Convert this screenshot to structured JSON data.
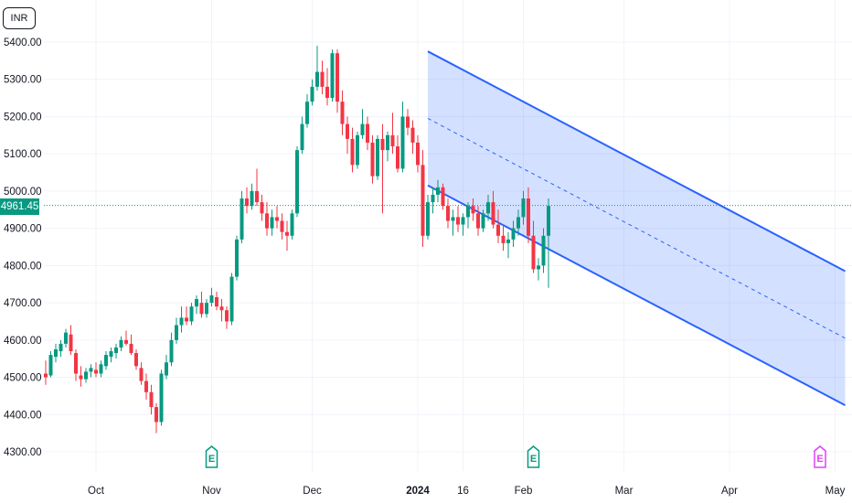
{
  "currency": "INR",
  "last_price_label": "4961.45",
  "colors": {
    "up": "#089981",
    "down": "#f23645",
    "channel": "#2962ff",
    "channel_fill": "#2962ff",
    "grid": "#f0f3fa",
    "earnings_past": "#089981",
    "earnings_future": "#e040fb"
  },
  "chart_data": {
    "type": "candlestick",
    "ylim": [
      4300,
      5400
    ],
    "y_ticks": [
      "5400.00",
      "5300.00",
      "5200.00",
      "5100.00",
      "5000.00",
      "4900.00",
      "4800.00",
      "4700.00",
      "4600.00",
      "4500.00",
      "4400.00",
      "4300.00"
    ],
    "x_ticks": [
      {
        "label": "Oct",
        "bar": 10,
        "bold": false
      },
      {
        "label": "Nov",
        "bar": 33,
        "bold": false
      },
      {
        "label": "Dec",
        "bar": 53,
        "bold": false
      },
      {
        "label": "2024",
        "bar": 74,
        "bold": true
      },
      {
        "label": "16",
        "bar": 83,
        "bold": false
      },
      {
        "label": "Feb",
        "bar": 95,
        "bold": false
      },
      {
        "label": "Mar",
        "bar": 115,
        "bold": false
      },
      {
        "label": "Apr",
        "bar": 136,
        "bold": false
      },
      {
        "label": "May",
        "bar": 157,
        "bold": false
      }
    ],
    "last_price": 4961.45,
    "earnings_markers": [
      {
        "label": "E",
        "bar": 33,
        "future": false
      },
      {
        "label": "E",
        "bar": 97,
        "future": false
      },
      {
        "label": "E",
        "bar": 154,
        "future": true
      }
    ],
    "channel": {
      "start_bar": 76,
      "end_bar": 159,
      "upper": [
        5375,
        4785
      ],
      "middle": [
        5195,
        4605
      ],
      "lower": [
        5015,
        4425
      ]
    },
    "candles": [
      [
        4510,
        4545,
        4480,
        4500
      ],
      [
        4505,
        4570,
        4500,
        4560
      ],
      [
        4555,
        4590,
        4540,
        4575
      ],
      [
        4570,
        4600,
        4555,
        4590
      ],
      [
        4590,
        4630,
        4580,
        4620
      ],
      [
        4615,
        4640,
        4560,
        4570
      ],
      [
        4565,
        4575,
        4490,
        4510
      ],
      [
        4505,
        4530,
        4475,
        4495
      ],
      [
        4495,
        4525,
        4485,
        4515
      ],
      [
        4515,
        4535,
        4500,
        4525
      ],
      [
        4520,
        4540,
        4500,
        4510
      ],
      [
        4510,
        4545,
        4500,
        4535
      ],
      [
        4530,
        4570,
        4520,
        4560
      ],
      [
        4555,
        4580,
        4540,
        4570
      ],
      [
        4565,
        4590,
        4550,
        4580
      ],
      [
        4580,
        4610,
        4570,
        4600
      ],
      [
        4600,
        4625,
        4585,
        4590
      ],
      [
        4590,
        4615,
        4560,
        4565
      ],
      [
        4565,
        4575,
        4520,
        4530
      ],
      [
        4525,
        4540,
        4480,
        4490
      ],
      [
        4490,
        4510,
        4440,
        4460
      ],
      [
        4460,
        4480,
        4400,
        4420
      ],
      [
        4420,
        4430,
        4350,
        4380
      ],
      [
        4380,
        4520,
        4370,
        4510
      ],
      [
        4505,
        4560,
        4495,
        4540
      ],
      [
        4540,
        4620,
        4530,
        4600
      ],
      [
        4600,
        4660,
        4590,
        4640
      ],
      [
        4640,
        4690,
        4620,
        4660
      ],
      [
        4660,
        4690,
        4640,
        4650
      ],
      [
        4650,
        4700,
        4640,
        4690
      ],
      [
        4690,
        4720,
        4670,
        4710
      ],
      [
        4700,
        4730,
        4660,
        4670
      ],
      [
        4670,
        4710,
        4660,
        4700
      ],
      [
        4700,
        4740,
        4690,
        4720
      ],
      [
        4715,
        4730,
        4680,
        4690
      ],
      [
        4690,
        4710,
        4650,
        4680
      ],
      [
        4680,
        4690,
        4630,
        4650
      ],
      [
        4650,
        4780,
        4640,
        4770
      ],
      [
        4770,
        4880,
        4760,
        4870
      ],
      [
        4870,
        5000,
        4860,
        4980
      ],
      [
        4980,
        5010,
        4940,
        4960
      ],
      [
        4960,
        5020,
        4950,
        5000
      ],
      [
        5000,
        5060,
        4960,
        4970
      ],
      [
        4970,
        4990,
        4920,
        4940
      ],
      [
        4940,
        4970,
        4880,
        4900
      ],
      [
        4900,
        4950,
        4880,
        4930
      ],
      [
        4930,
        4960,
        4900,
        4920
      ],
      [
        4920,
        4940,
        4870,
        4890
      ],
      [
        4890,
        4920,
        4840,
        4880
      ],
      [
        4880,
        4950,
        4870,
        4940
      ],
      [
        4940,
        5120,
        4930,
        5110
      ],
      [
        5110,
        5200,
        5100,
        5180
      ],
      [
        5180,
        5260,
        5170,
        5240
      ],
      [
        5240,
        5300,
        5230,
        5280
      ],
      [
        5280,
        5390,
        5270,
        5320
      ],
      [
        5320,
        5350,
        5260,
        5280
      ],
      [
        5280,
        5330,
        5230,
        5250
      ],
      [
        5250,
        5380,
        5240,
        5370
      ],
      [
        5370,
        5380,
        5210,
        5240
      ],
      [
        5240,
        5270,
        5150,
        5180
      ],
      [
        5180,
        5200,
        5100,
        5140
      ],
      [
        5140,
        5170,
        5050,
        5070
      ],
      [
        5070,
        5160,
        5060,
        5150
      ],
      [
        5150,
        5220,
        5140,
        5180
      ],
      [
        5180,
        5200,
        5110,
        5130
      ],
      [
        5130,
        5150,
        5020,
        5040
      ],
      [
        5040,
        5150,
        5030,
        5140
      ],
      [
        5140,
        5180,
        4940,
        5110
      ],
      [
        5110,
        5160,
        5080,
        5150
      ],
      [
        5150,
        5210,
        5100,
        5120
      ],
      [
        5120,
        5150,
        5050,
        5060
      ],
      [
        5060,
        5240,
        5050,
        5200
      ],
      [
        5200,
        5220,
        5150,
        5170
      ],
      [
        5170,
        5190,
        5100,
        5130
      ],
      [
        5130,
        5150,
        5050,
        5070
      ],
      [
        5070,
        5110,
        4850,
        4880
      ],
      [
        4880,
        4990,
        4870,
        4970
      ],
      [
        4970,
        5010,
        4940,
        4990
      ],
      [
        4990,
        5030,
        4970,
        5010
      ],
      [
        5010,
        5020,
        4950,
        4960
      ],
      [
        4960,
        4980,
        4900,
        4920
      ],
      [
        4920,
        4950,
        4880,
        4930
      ],
      [
        4930,
        4960,
        4890,
        4910
      ],
      [
        4910,
        4940,
        4880,
        4930
      ],
      [
        4930,
        4970,
        4900,
        4960
      ],
      [
        4960,
        4980,
        4920,
        4940
      ],
      [
        4940,
        4960,
        4880,
        4900
      ],
      [
        4900,
        4950,
        4890,
        4940
      ],
      [
        4940,
        4990,
        4920,
        4970
      ],
      [
        4970,
        5000,
        4900,
        4910
      ],
      [
        4910,
        4950,
        4860,
        4880
      ],
      [
        4880,
        4910,
        4840,
        4860
      ],
      [
        4860,
        4890,
        4820,
        4870
      ],
      [
        4870,
        4920,
        4850,
        4900
      ],
      [
        4900,
        4950,
        4880,
        4930
      ],
      [
        4930,
        5000,
        4910,
        4980
      ],
      [
        4980,
        5010,
        4860,
        4880
      ],
      [
        4880,
        4920,
        4780,
        4790
      ],
      [
        4790,
        4820,
        4760,
        4800
      ],
      [
        4800,
        4900,
        4780,
        4880
      ],
      [
        4880,
        4980,
        4740,
        4960
      ]
    ]
  }
}
